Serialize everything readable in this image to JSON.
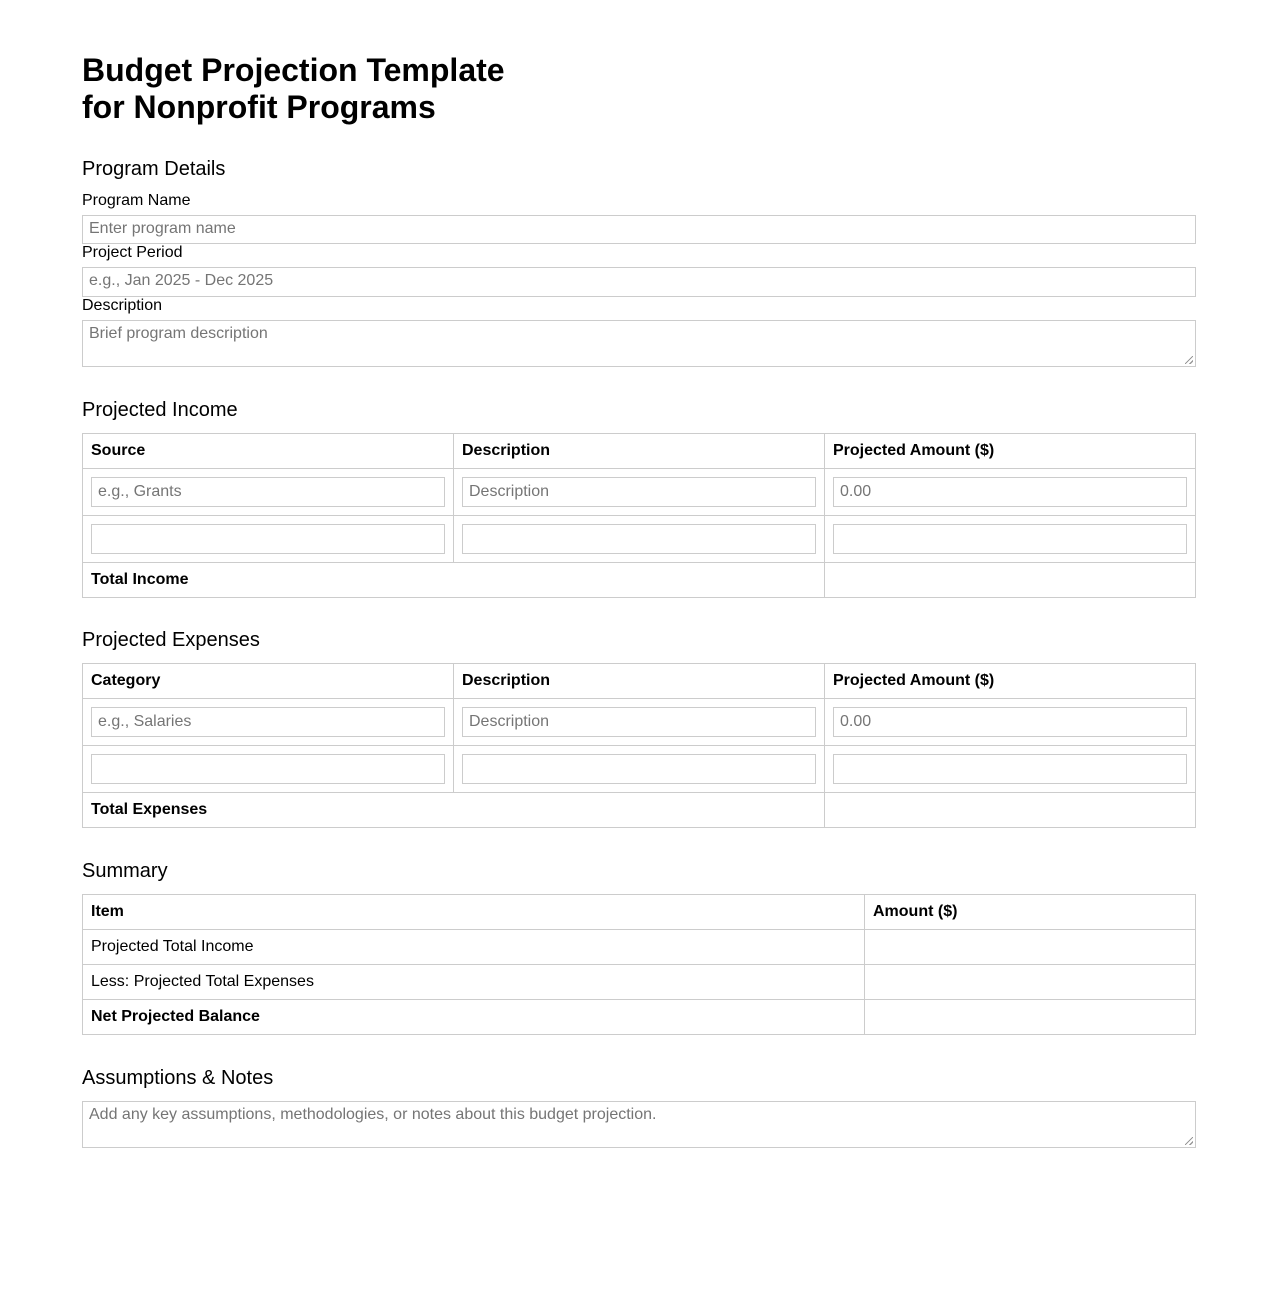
{
  "title_line1": "Budget Projection Template",
  "title_line2": "for Nonprofit Programs",
  "details": {
    "heading": "Program Details",
    "name_label": "Program Name",
    "name_placeholder": "Enter program name",
    "period_label": "Project Period",
    "period_placeholder": "e.g., Jan 2025 - Dec 2025",
    "desc_label": "Description",
    "desc_placeholder": "Brief program description"
  },
  "income": {
    "heading": "Projected Income",
    "headers": [
      "Source",
      "Description",
      "Projected Amount ($)"
    ],
    "placeholders": [
      "e.g., Grants",
      "Description",
      "0.00"
    ],
    "total_label": "Total Income"
  },
  "expenses": {
    "heading": "Projected Expenses",
    "headers": [
      "Category",
      "Description",
      "Projected Amount ($)"
    ],
    "placeholders": [
      "e.g., Salaries",
      "Description",
      "0.00"
    ],
    "total_label": "Total Expenses"
  },
  "summary": {
    "heading": "Summary",
    "headers": [
      "Item",
      "Amount ($)"
    ],
    "rows": [
      "Projected Total Income",
      "Less: Projected Total Expenses",
      "Net Projected Balance"
    ]
  },
  "notes": {
    "heading": "Assumptions & Notes",
    "placeholder": "Add any key assumptions, methodologies, or notes about this budget projection."
  }
}
